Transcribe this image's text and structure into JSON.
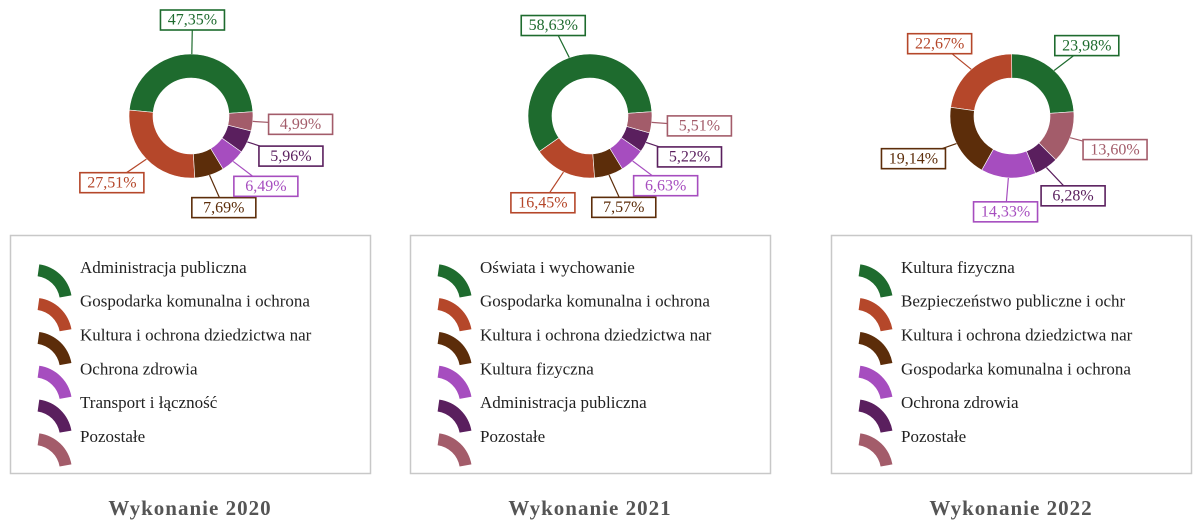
{
  "chart_data": [
    {
      "type": "pie",
      "title": "Wykonanie 2020",
      "categories": [
        "Administracja publiczna",
        "Gospodarka komunalna i ochrona",
        "Kultura i ochrona dziedzictwa nar",
        "Ochrona zdrowia",
        "Transport i łączność",
        "Pozostałe"
      ],
      "values": [
        47.35,
        27.51,
        7.69,
        6.49,
        5.96,
        4.99
      ],
      "value_labels": [
        "47,35%",
        "27,51%",
        "7,69%",
        "6,49%",
        "5,96%",
        "4,99%"
      ],
      "colors": [
        "#1e6b2e",
        "#b5472a",
        "#5c2d0a",
        "#a64dbf",
        "#5a1f5e",
        "#a35c6a"
      ]
    },
    {
      "type": "pie",
      "title": "Wykonanie 2021",
      "categories": [
        "Oświata i wychowanie",
        "Gospodarka komunalna i ochrona",
        "Kultura i ochrona dziedzictwa nar",
        "Kultura fizyczna",
        "Administracja publiczna",
        "Pozostałe"
      ],
      "values": [
        58.63,
        16.45,
        7.57,
        6.63,
        5.22,
        5.51
      ],
      "value_labels": [
        "58,63%",
        "16,45%",
        "7,57%",
        "6,63%",
        "5,22%",
        "5,51%"
      ],
      "colors": [
        "#1e6b2e",
        "#b5472a",
        "#5c2d0a",
        "#a64dbf",
        "#5a1f5e",
        "#a35c6a"
      ]
    },
    {
      "type": "pie",
      "title": "Wykonanie 2022",
      "categories": [
        "Kultura fizyczna",
        "Bezpieczeństwo publiczne i ochr",
        "Kultura i ochrona dziedzictwa nar",
        "Gospodarka komunalna i ochrona",
        "Ochrona zdrowia",
        "Pozostałe"
      ],
      "values": [
        23.98,
        22.67,
        19.14,
        14.33,
        6.28,
        13.6
      ],
      "value_labels": [
        "23,98%",
        "22,67%",
        "19,14%",
        "14,33%",
        "6,28%",
        "13,60%"
      ],
      "colors": [
        "#1e6b2e",
        "#b5472a",
        "#5c2d0a",
        "#a64dbf",
        "#5a1f5e",
        "#a35c6a"
      ]
    }
  ]
}
